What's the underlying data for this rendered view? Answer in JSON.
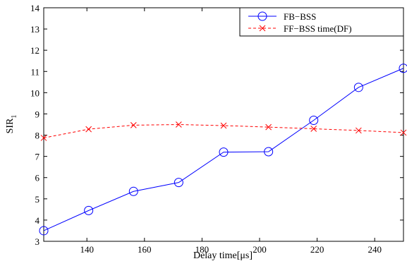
{
  "chart_data": {
    "type": "line",
    "title": "",
    "xlabel": "Delay time[μs]",
    "ylabel_main": "SIR",
    "ylabel_sub": "1",
    "xlim": [
      125,
      250
    ],
    "ylim": [
      3,
      14
    ],
    "xticks": [
      140,
      160,
      180,
      200,
      220,
      240
    ],
    "yticks": [
      3,
      4,
      5,
      6,
      7,
      8,
      9,
      10,
      11,
      12,
      13,
      14
    ],
    "grid": false,
    "legend_position": "top-right",
    "series": [
      {
        "name": "FB−BSS",
        "color": "#0000ff",
        "line_style": "solid",
        "marker": "circle",
        "x": [
          125,
          140.6,
          156.2,
          171.9,
          187.5,
          203.1,
          218.8,
          234.4,
          250
        ],
        "y": [
          3.5,
          4.45,
          5.35,
          5.77,
          7.2,
          7.22,
          8.7,
          10.25,
          11.15
        ]
      },
      {
        "name": "FF−BSS time(DF)",
        "color": "#ff0000",
        "line_style": "dashed",
        "marker": "x",
        "x": [
          125,
          140.6,
          156.2,
          171.9,
          187.5,
          203.1,
          218.8,
          234.4,
          250
        ],
        "y": [
          7.87,
          8.28,
          8.47,
          8.5,
          8.45,
          8.38,
          8.3,
          8.22,
          8.12
        ]
      }
    ]
  }
}
